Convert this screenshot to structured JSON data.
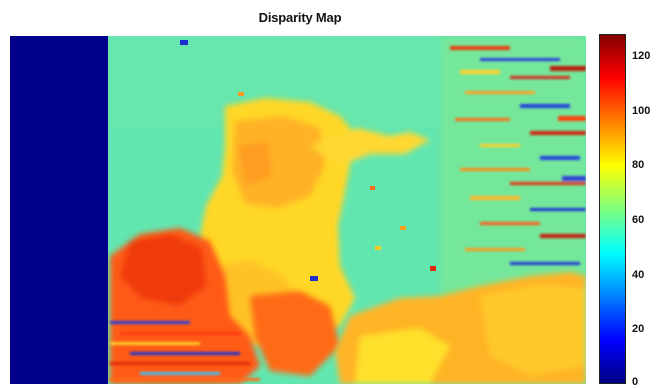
{
  "figure": {
    "title": "Disparity Map"
  },
  "colorbar": {
    "colormap": "jet",
    "min": 0,
    "max": 128,
    "ticks": [
      {
        "value": 0,
        "label": "0"
      },
      {
        "value": 20,
        "label": "20"
      },
      {
        "value": 40,
        "label": "40"
      },
      {
        "value": 60,
        "label": "60"
      },
      {
        "value": 80,
        "label": "80"
      },
      {
        "value": 100,
        "label": "100"
      },
      {
        "value": 120,
        "label": "120"
      }
    ]
  },
  "palette": {
    "dark_blue": "#00008b",
    "background_cyan": "#5fe6b4",
    "yellow": "#ffdc28",
    "orange": "#ff9a1e",
    "red": "#e0280a"
  }
}
